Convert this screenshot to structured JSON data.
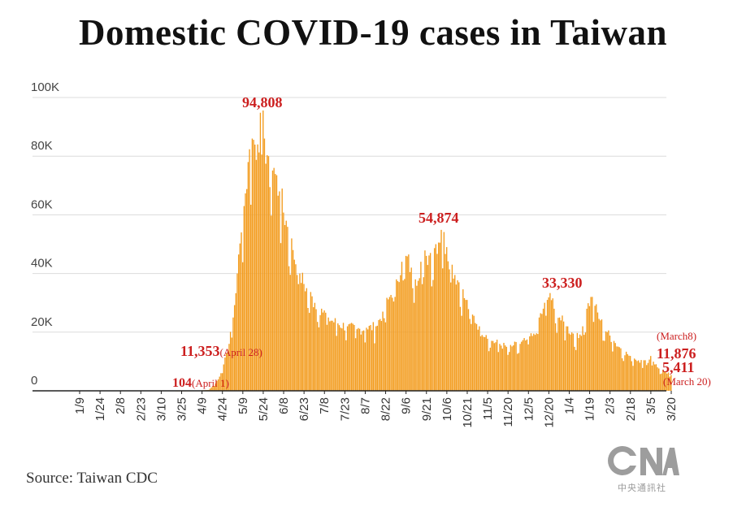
{
  "chart_data": {
    "type": "bar",
    "title": "Domestic COVID-19 cases in Taiwan",
    "source": "Source: Taiwan CDC",
    "color": "#f39c1e",
    "ylim": [
      0,
      100000
    ],
    "y_ticks": [
      {
        "value": 0,
        "label": "0"
      },
      {
        "value": 20000,
        "label": "20K"
      },
      {
        "value": 40000,
        "label": "40K"
      },
      {
        "value": 60000,
        "label": "60K"
      },
      {
        "value": 80000,
        "label": "80K"
      },
      {
        "value": 100000,
        "label": "100K"
      }
    ],
    "x_ticks": [
      "1/9",
      "1/24",
      "2/8",
      "2/23",
      "3/10",
      "3/25",
      "4/9",
      "4/24",
      "5/9",
      "5/24",
      "6/8",
      "6/23",
      "7/8",
      "7/23",
      "8/7",
      "8/22",
      "9/6",
      "9/21",
      "10/6",
      "10/21",
      "11/5",
      "11/20",
      "12/5",
      "12/20",
      "1/4",
      "1/19",
      "2/3",
      "2/18",
      "3/5",
      "3/20"
    ],
    "x_range_days": [
      0,
      435
    ],
    "keypoints": [
      [
        0,
        0
      ],
      [
        70,
        0
      ],
      [
        81,
        10
      ],
      [
        88,
        104
      ],
      [
        95,
        300
      ],
      [
        100,
        2500
      ],
      [
        104,
        6000
      ],
      [
        106,
        9000
      ],
      [
        107,
        11353
      ],
      [
        110,
        16000
      ],
      [
        113,
        25000
      ],
      [
        116,
        40000
      ],
      [
        119,
        54000
      ],
      [
        121,
        63000
      ],
      [
        124,
        78000
      ],
      [
        127,
        86000
      ],
      [
        131,
        84000
      ],
      [
        133,
        94808
      ],
      [
        136,
        86000
      ],
      [
        139,
        80000
      ],
      [
        143,
        76000
      ],
      [
        147,
        68000
      ],
      [
        152,
        58000
      ],
      [
        157,
        48000
      ],
      [
        162,
        40000
      ],
      [
        167,
        35000
      ],
      [
        173,
        30000
      ],
      [
        178,
        28000
      ],
      [
        183,
        25000
      ],
      [
        190,
        23000
      ],
      [
        197,
        22000
      ],
      [
        204,
        21000
      ],
      [
        211,
        21500
      ],
      [
        218,
        22000
      ],
      [
        223,
        27000
      ],
      [
        228,
        32000
      ],
      [
        233,
        38000
      ],
      [
        237,
        44000
      ],
      [
        240,
        46000
      ],
      [
        244,
        42000
      ],
      [
        247,
        38000
      ],
      [
        251,
        44000
      ],
      [
        255,
        46000
      ],
      [
        258,
        47000
      ],
      [
        262,
        50000
      ],
      [
        266,
        54874
      ],
      [
        270,
        49000
      ],
      [
        274,
        43000
      ],
      [
        279,
        37000
      ],
      [
        284,
        31000
      ],
      [
        289,
        26000
      ],
      [
        294,
        22000
      ],
      [
        299,
        19000
      ],
      [
        304,
        17000
      ],
      [
        309,
        16000
      ],
      [
        314,
        15000
      ],
      [
        319,
        15500
      ],
      [
        324,
        16000
      ],
      [
        329,
        17500
      ],
      [
        334,
        19500
      ],
      [
        338,
        25000
      ],
      [
        341,
        28000
      ],
      [
        344,
        31000
      ],
      [
        346,
        33330
      ],
      [
        349,
        28000
      ],
      [
        353,
        25000
      ],
      [
        358,
        22000
      ],
      [
        363,
        19500
      ],
      [
        367,
        18000
      ],
      [
        370,
        22000
      ],
      [
        373,
        28000
      ],
      [
        376,
        32000
      ],
      [
        379,
        29000
      ],
      [
        383,
        24000
      ],
      [
        388,
        20000
      ],
      [
        393,
        17000
      ],
      [
        398,
        14500
      ],
      [
        403,
        12500
      ],
      [
        408,
        11000
      ],
      [
        413,
        10500
      ],
      [
        418,
        9500
      ],
      [
        420,
        11876
      ],
      [
        425,
        8000
      ],
      [
        430,
        6500
      ],
      [
        435,
        5411
      ]
    ],
    "annotations": [
      {
        "value": "94,808",
        "note": ""
      },
      {
        "value": "54,874",
        "note": ""
      },
      {
        "value": "33,330",
        "note": ""
      },
      {
        "value": "11,353",
        "note": "(April 28)"
      },
      {
        "value": "104",
        "note": "(April 1)"
      },
      {
        "value": "11,876",
        "note": "(March8)"
      },
      {
        "value": "5,411",
        "note": "(March 20)"
      }
    ]
  },
  "logo": {
    "text": "CNA",
    "subtitle": "中央通訊社"
  }
}
